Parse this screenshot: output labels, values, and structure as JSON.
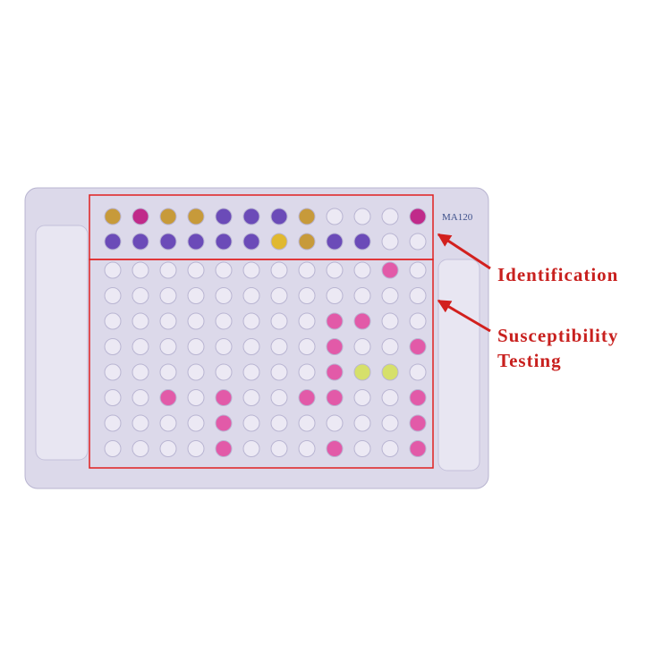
{
  "labels": {
    "identification": "Identification",
    "susceptibility": [
      "Susceptibility",
      "Testing"
    ]
  },
  "plate": {
    "model": "MA120"
  }
}
